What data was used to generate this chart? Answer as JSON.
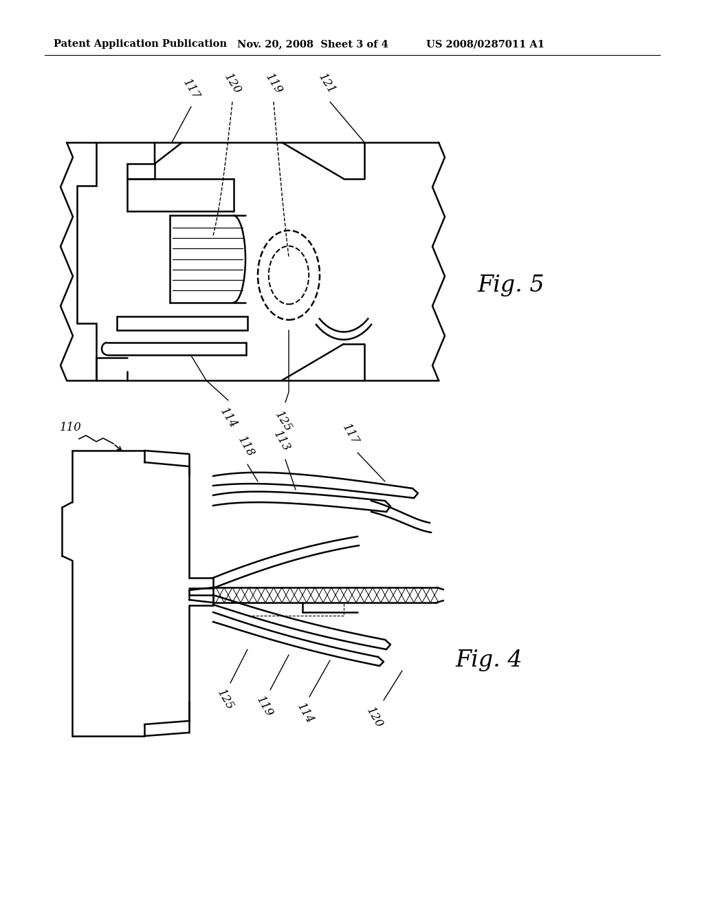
{
  "bg_color": "#ffffff",
  "header_left": "Patent Application Publication",
  "header_mid": "Nov. 20, 2008  Sheet 3 of 4",
  "header_right": "US 2008/0287011 A1",
  "fig5_label": "Fig. 5",
  "fig4_label": "Fig. 4",
  "line_color": "#000000",
  "lw": 1.8,
  "lw_thin": 1.0,
  "label_fontsize": 12,
  "header_fontsize": 10.5,
  "figlabel_fontsize": 24
}
